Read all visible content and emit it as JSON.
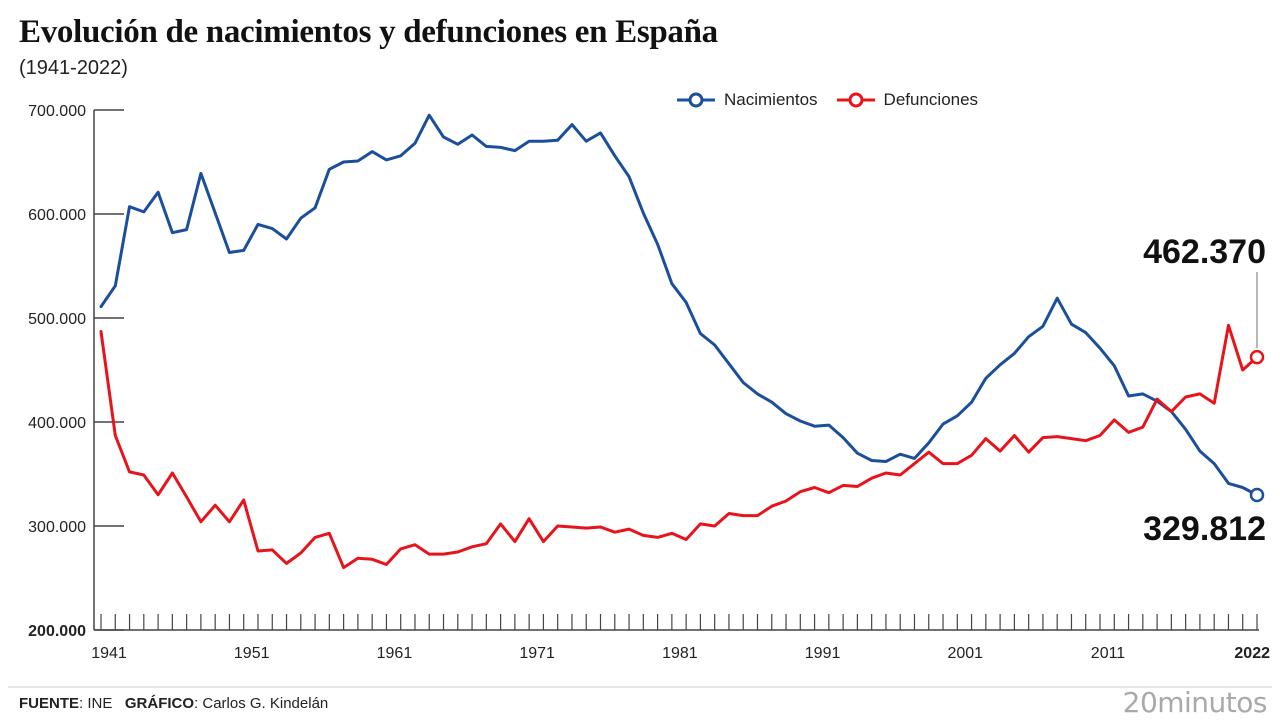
{
  "header": {
    "title": "Evolución de nacimientos y defunciones en España",
    "subtitle": "(1941-2022)"
  },
  "footer": {
    "source_label": "FUENTE",
    "source_value": ": INE",
    "graphic_label": "GRÁFICO",
    "graphic_value": ": Carlos G. Kindelán",
    "brand": "20minutos"
  },
  "colors": {
    "births": "#1b4f9c",
    "deaths": "#e8141c",
    "axis": "#444444"
  },
  "chart_data": {
    "type": "line",
    "title": "Evolución de nacimientos y defunciones en España",
    "subtitle": "(1941-2022)",
    "xlabel": "",
    "ylabel": "",
    "xlim": [
      1941,
      2022
    ],
    "ylim": [
      200000,
      700000
    ],
    "grid": false,
    "legend_position": "top-center",
    "x_tick_labels": [
      "1941",
      "1951",
      "1961",
      "1971",
      "1981",
      "1991",
      "2001",
      "2011",
      "2022"
    ],
    "y_tick_labels": [
      "700.000",
      "600.000",
      "500.000",
      "400.000",
      "300.000",
      "200.000"
    ],
    "y_ticks": [
      700000,
      600000,
      500000,
      400000,
      300000,
      200000
    ],
    "x": [
      1941,
      1942,
      1943,
      1944,
      1945,
      1946,
      1947,
      1948,
      1949,
      1950,
      1951,
      1952,
      1953,
      1954,
      1955,
      1956,
      1957,
      1958,
      1959,
      1960,
      1961,
      1962,
      1963,
      1964,
      1965,
      1966,
      1967,
      1968,
      1969,
      1970,
      1971,
      1972,
      1973,
      1974,
      1975,
      1976,
      1977,
      1978,
      1979,
      1980,
      1981,
      1982,
      1983,
      1984,
      1985,
      1986,
      1987,
      1988,
      1989,
      1990,
      1991,
      1992,
      1993,
      1994,
      1995,
      1996,
      1997,
      1998,
      1999,
      2000,
      2001,
      2002,
      2003,
      2004,
      2005,
      2006,
      2007,
      2008,
      2009,
      2010,
      2011,
      2012,
      2013,
      2014,
      2015,
      2016,
      2017,
      2018,
      2019,
      2020,
      2021,
      2022
    ],
    "series": [
      {
        "name": "Nacimientos",
        "color": "#1b4f9c",
        "values": [
          511000,
          531000,
          607000,
          602000,
          621000,
          582000,
          585000,
          639000,
          601000,
          563000,
          565000,
          590000,
          586000,
          576000,
          596000,
          606000,
          643000,
          650000,
          651000,
          660000,
          652000,
          656000,
          668000,
          695000,
          674000,
          667000,
          676000,
          665000,
          664000,
          661000,
          670000,
          670000,
          671000,
          686000,
          670000,
          678000,
          656000,
          636000,
          601000,
          571000,
          533000,
          515000,
          485000,
          474000,
          456000,
          438000,
          427000,
          419000,
          408000,
          401000,
          396000,
          397000,
          385000,
          370000,
          363000,
          362000,
          369000,
          365000,
          380000,
          398000,
          406000,
          419000,
          442000,
          455000,
          466000,
          482000,
          492000,
          519000,
          494000,
          486000,
          471000,
          454000,
          425000,
          427000,
          420000,
          410000,
          393000,
          372000,
          360000,
          341000,
          337000,
          329812
        ]
      },
      {
        "name": "Defunciones",
        "color": "#e8141c",
        "values": [
          487000,
          387000,
          352000,
          349000,
          330000,
          351000,
          328000,
          304000,
          320000,
          304000,
          325000,
          276000,
          277000,
          264000,
          274000,
          289000,
          293000,
          260000,
          269000,
          268000,
          263000,
          278000,
          282000,
          273000,
          273000,
          275000,
          280000,
          283000,
          302000,
          285000,
          307000,
          285000,
          300000,
          299000,
          298000,
          299000,
          294000,
          297000,
          291000,
          289000,
          293000,
          287000,
          302000,
          300000,
          312000,
          310000,
          310000,
          319000,
          324000,
          333000,
          337000,
          332000,
          339000,
          338000,
          346000,
          351000,
          349000,
          360000,
          371000,
          360000,
          360000,
          368000,
          384000,
          372000,
          387000,
          371000,
          385000,
          386000,
          384000,
          382000,
          387000,
          402000,
          390000,
          395000,
          422000,
          410000,
          424000,
          427000,
          418000,
          493000,
          450000,
          462370
        ]
      }
    ],
    "annotations": [
      {
        "series": "Defunciones",
        "x": 2022,
        "label": "462.370"
      },
      {
        "series": "Nacimientos",
        "x": 2022,
        "label": "329.812"
      }
    ]
  }
}
